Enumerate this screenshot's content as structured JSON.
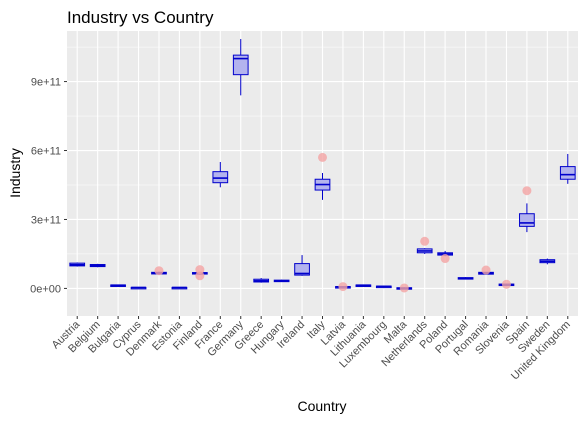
{
  "chart_data": {
    "type": "box",
    "title": "Industry  vs Country",
    "xlabel": "Country",
    "ylabel": "Industry",
    "ylim": [
      -120000000000.0,
      1120000000000.0
    ],
    "y_ticks": [
      0,
      300000000000.0,
      600000000000.0,
      900000000000.0
    ],
    "y_tick_labels": [
      "0e+00",
      "3e+11",
      "6e+11",
      "9e+11"
    ],
    "grid": true,
    "colors": {
      "panel": "#ebebeb",
      "grid_major": "#ffffff",
      "box_fill": "#b3b3ee",
      "box_line": "#0000cc",
      "outlier": "#f4a4a4"
    },
    "categories": [
      "Austria",
      "Belgium",
      "Bulgaria",
      "Cyprus",
      "Denmark",
      "Estonia",
      "Finland",
      "France",
      "Germany",
      "Greece",
      "Hungary",
      "Ireland",
      "Italy",
      "Latvia",
      "Lithuania",
      "Luxembourg",
      "Malta",
      "Netherlands",
      "Poland",
      "Portugal",
      "Romania",
      "Slovenia",
      "Spain",
      "Sweden",
      "United Kingdom"
    ],
    "boxes": [
      {
        "min": 95000000000.0,
        "q1": 98000000000.0,
        "median": 103000000000.0,
        "q3": 110000000000.0,
        "max": 113000000000.0,
        "outliers": []
      },
      {
        "min": 92000000000.0,
        "q1": 95000000000.0,
        "median": 99000000000.0,
        "q3": 104000000000.0,
        "max": 107000000000.0,
        "outliers": []
      },
      {
        "min": 12000000000.0,
        "q1": 13000000000.0,
        "median": 14000000000.0,
        "q3": 15000000000.0,
        "max": 16000000000.0,
        "outliers": []
      },
      {
        "min": 3000000000.0,
        "q1": 3500000000.0,
        "median": 4000000000.0,
        "q3": 4500000000.0,
        "max": 5000000000.0,
        "outliers": []
      },
      {
        "min": 60000000000.0,
        "q1": 63000000000.0,
        "median": 66000000000.0,
        "q3": 70000000000.0,
        "max": 73000000000.0,
        "outliers": [
          77000000000.0
        ]
      },
      {
        "min": 3000000000.0,
        "q1": 3500000000.0,
        "median": 4000000000.0,
        "q3": 4500000000.0,
        "max": 5000000000.0,
        "outliers": []
      },
      {
        "min": 60000000000.0,
        "q1": 63000000000.0,
        "median": 66000000000.0,
        "q3": 69000000000.0,
        "max": 70000000000.0,
        "outliers": [
          55000000000.0,
          82000000000.0
        ]
      },
      {
        "min": 440000000000.0,
        "q1": 460000000000.0,
        "median": 480000000000.0,
        "q3": 508000000000.0,
        "max": 550000000000.0,
        "outliers": []
      },
      {
        "min": 840000000000.0,
        "q1": 930000000000.0,
        "median": 1000000000000.0,
        "q3": 1015000000000.0,
        "max": 1085000000000.0,
        "outliers": []
      },
      {
        "min": 25000000000.0,
        "q1": 28000000000.0,
        "median": 33000000000.0,
        "q3": 40000000000.0,
        "max": 45000000000.0,
        "outliers": []
      },
      {
        "min": 28000000000.0,
        "q1": 30000000000.0,
        "median": 33000000000.0,
        "q3": 36000000000.0,
        "max": 38000000000.0,
        "outliers": []
      },
      {
        "min": 55000000000.0,
        "q1": 58000000000.0,
        "median": 65000000000.0,
        "q3": 108000000000.0,
        "max": 145000000000.0,
        "outliers": []
      },
      {
        "min": 385000000000.0,
        "q1": 428000000000.0,
        "median": 452000000000.0,
        "q3": 475000000000.0,
        "max": 502000000000.0,
        "outliers": [
          570000000000.0
        ]
      },
      {
        "min": 5000000000.0,
        "q1": 6000000000.0,
        "median": 7000000000.0,
        "q3": 8000000000.0,
        "max": 9000000000.0,
        "outliers": [
          8000000000.0
        ]
      },
      {
        "min": 12000000000.0,
        "q1": 13000000000.0,
        "median": 14000000000.0,
        "q3": 15000000000.0,
        "max": 16000000000.0,
        "outliers": []
      },
      {
        "min": 7000000000.0,
        "q1": 8000000000.0,
        "median": 9000000000.0,
        "q3": 10000000000.0,
        "max": 11000000000.0,
        "outliers": []
      },
      {
        "min": -2000000000.0,
        "q1": 0.0,
        "median": 1000000000.0,
        "q3": 3000000000.0,
        "max": 5000000000.0,
        "outliers": [
          2000000000.0
        ]
      },
      {
        "min": 150000000000.0,
        "q1": 155000000000.0,
        "median": 163000000000.0,
        "q3": 172000000000.0,
        "max": 175000000000.0,
        "outliers": [
          205000000000.0
        ]
      },
      {
        "min": 140000000000.0,
        "q1": 145000000000.0,
        "median": 150000000000.0,
        "q3": 155000000000.0,
        "max": 163000000000.0,
        "outliers": [
          130000000000.0
        ]
      },
      {
        "min": 40000000000.0,
        "q1": 42000000000.0,
        "median": 44000000000.0,
        "q3": 47000000000.0,
        "max": 49000000000.0,
        "outliers": []
      },
      {
        "min": 60000000000.0,
        "q1": 62000000000.0,
        "median": 66000000000.0,
        "q3": 70000000000.0,
        "max": 72000000000.0,
        "outliers": [
          80000000000.0
        ]
      },
      {
        "min": 10000000000.0,
        "q1": 13000000000.0,
        "median": 16000000000.0,
        "q3": 19000000000.0,
        "max": 21000000000.0,
        "outliers": [
          18000000000.0
        ]
      },
      {
        "min": 245000000000.0,
        "q1": 270000000000.0,
        "median": 285000000000.0,
        "q3": 325000000000.0,
        "max": 370000000000.0,
        "outliers": [
          425000000000.0
        ]
      },
      {
        "min": 105000000000.0,
        "q1": 112000000000.0,
        "median": 118000000000.0,
        "q3": 125000000000.0,
        "max": 130000000000.0,
        "outliers": []
      },
      {
        "min": 455000000000.0,
        "q1": 475000000000.0,
        "median": 495000000000.0,
        "q3": 530000000000.0,
        "max": 585000000000.0,
        "outliers": []
      }
    ]
  }
}
